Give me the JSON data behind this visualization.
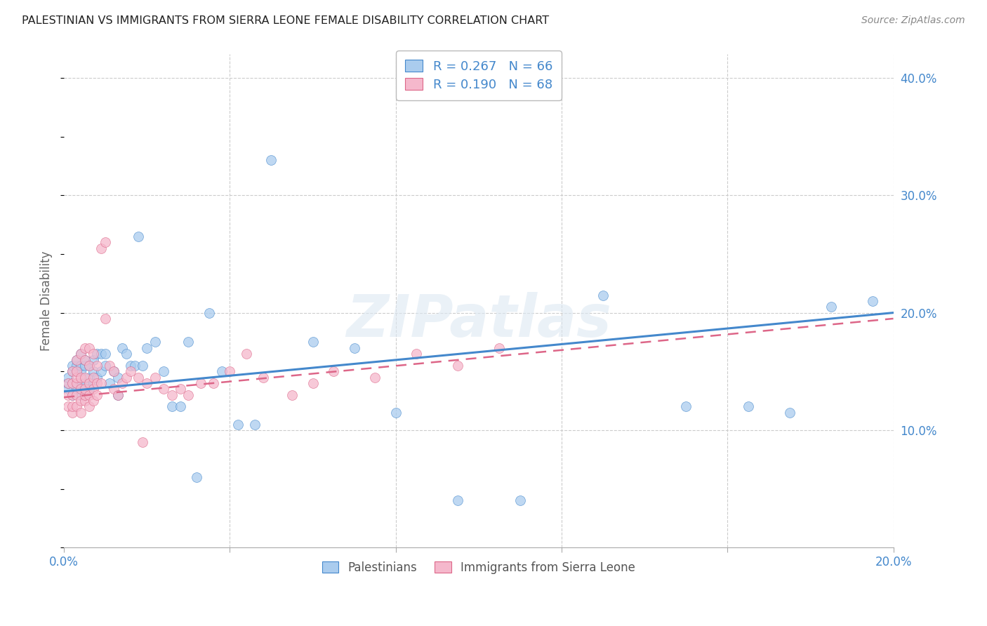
{
  "title": "PALESTINIAN VS IMMIGRANTS FROM SIERRA LEONE FEMALE DISABILITY CORRELATION CHART",
  "source": "Source: ZipAtlas.com",
  "ylabel": "Female Disability",
  "watermark": "ZIPatlas",
  "series1_label": "Palestinians",
  "series2_label": "Immigrants from Sierra Leone",
  "series1_R": 0.267,
  "series1_N": 66,
  "series2_R": 0.19,
  "series2_N": 68,
  "series1_color": "#aaccee",
  "series2_color": "#f5b8cc",
  "line1_color": "#4488cc",
  "line2_color": "#dd6688",
  "xlim": [
    0.0,
    0.2
  ],
  "ylim": [
    0.0,
    0.42
  ],
  "xtick_vals": [
    0.0,
    0.04,
    0.08,
    0.12,
    0.16,
    0.2
  ],
  "xtick_labels": [
    "0.0%",
    "",
    "",
    "",
    "",
    "20.0%"
  ],
  "yticks_right": [
    0.1,
    0.2,
    0.3,
    0.4
  ],
  "ytick_labels_right": [
    "10.0%",
    "20.0%",
    "30.0%",
    "40.0%"
  ],
  "series1_x": [
    0.001,
    0.001,
    0.001,
    0.002,
    0.002,
    0.002,
    0.002,
    0.003,
    0.003,
    0.003,
    0.003,
    0.003,
    0.004,
    0.004,
    0.004,
    0.004,
    0.004,
    0.005,
    0.005,
    0.005,
    0.005,
    0.006,
    0.006,
    0.006,
    0.007,
    0.007,
    0.007,
    0.008,
    0.008,
    0.009,
    0.009,
    0.01,
    0.01,
    0.011,
    0.012,
    0.013,
    0.013,
    0.014,
    0.015,
    0.016,
    0.017,
    0.018,
    0.019,
    0.02,
    0.022,
    0.024,
    0.026,
    0.028,
    0.03,
    0.032,
    0.035,
    0.038,
    0.042,
    0.046,
    0.05,
    0.06,
    0.07,
    0.08,
    0.095,
    0.11,
    0.13,
    0.15,
    0.165,
    0.175,
    0.185,
    0.195
  ],
  "series1_y": [
    0.135,
    0.14,
    0.145,
    0.13,
    0.14,
    0.15,
    0.155,
    0.135,
    0.14,
    0.15,
    0.155,
    0.16,
    0.13,
    0.14,
    0.15,
    0.155,
    0.165,
    0.13,
    0.14,
    0.155,
    0.16,
    0.135,
    0.145,
    0.155,
    0.14,
    0.15,
    0.16,
    0.145,
    0.165,
    0.15,
    0.165,
    0.155,
    0.165,
    0.14,
    0.15,
    0.13,
    0.145,
    0.17,
    0.165,
    0.155,
    0.155,
    0.265,
    0.155,
    0.17,
    0.175,
    0.15,
    0.12,
    0.12,
    0.175,
    0.06,
    0.2,
    0.15,
    0.105,
    0.105,
    0.33,
    0.175,
    0.17,
    0.115,
    0.04,
    0.04,
    0.215,
    0.12,
    0.12,
    0.115,
    0.205,
    0.21
  ],
  "series2_x": [
    0.001,
    0.001,
    0.001,
    0.002,
    0.002,
    0.002,
    0.002,
    0.002,
    0.003,
    0.003,
    0.003,
    0.003,
    0.003,
    0.003,
    0.004,
    0.004,
    0.004,
    0.004,
    0.004,
    0.005,
    0.005,
    0.005,
    0.005,
    0.005,
    0.005,
    0.006,
    0.006,
    0.006,
    0.006,
    0.006,
    0.007,
    0.007,
    0.007,
    0.007,
    0.008,
    0.008,
    0.008,
    0.009,
    0.009,
    0.01,
    0.01,
    0.011,
    0.012,
    0.012,
    0.013,
    0.014,
    0.015,
    0.016,
    0.018,
    0.019,
    0.02,
    0.022,
    0.024,
    0.026,
    0.028,
    0.03,
    0.033,
    0.036,
    0.04,
    0.044,
    0.048,
    0.055,
    0.06,
    0.065,
    0.075,
    0.085,
    0.095,
    0.105
  ],
  "series2_y": [
    0.12,
    0.13,
    0.14,
    0.115,
    0.12,
    0.13,
    0.14,
    0.15,
    0.12,
    0.13,
    0.14,
    0.145,
    0.15,
    0.16,
    0.115,
    0.125,
    0.135,
    0.145,
    0.165,
    0.125,
    0.13,
    0.135,
    0.145,
    0.16,
    0.17,
    0.12,
    0.13,
    0.14,
    0.155,
    0.17,
    0.125,
    0.135,
    0.145,
    0.165,
    0.13,
    0.14,
    0.155,
    0.14,
    0.255,
    0.26,
    0.195,
    0.155,
    0.135,
    0.15,
    0.13,
    0.14,
    0.145,
    0.15,
    0.145,
    0.09,
    0.14,
    0.145,
    0.135,
    0.13,
    0.135,
    0.13,
    0.14,
    0.14,
    0.15,
    0.165,
    0.145,
    0.13,
    0.14,
    0.15,
    0.145,
    0.165,
    0.155,
    0.17
  ]
}
